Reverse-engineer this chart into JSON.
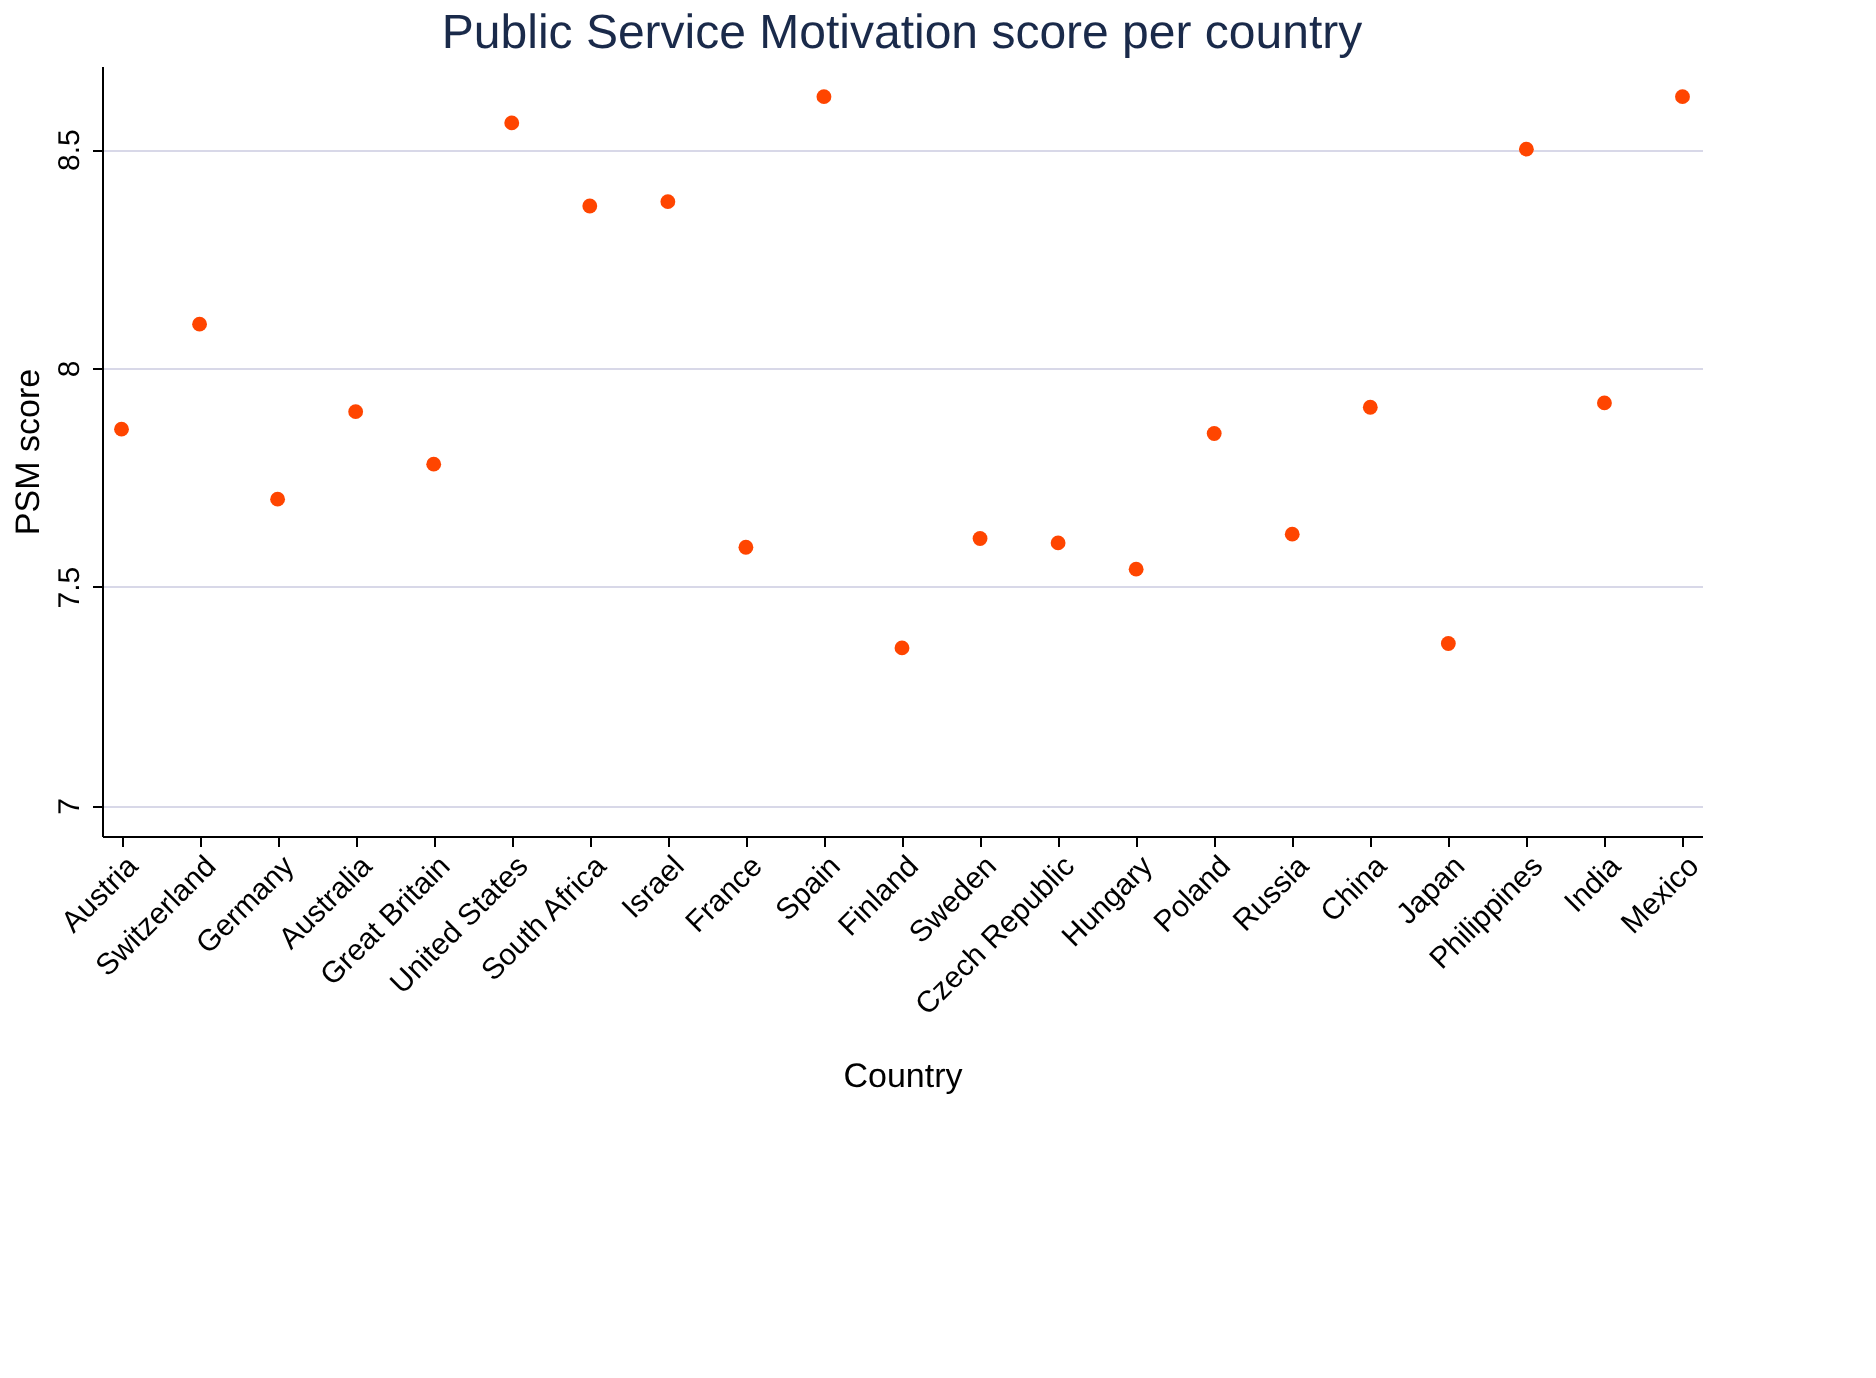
{
  "chart_data": {
    "type": "scatter",
    "title": "Public Service Motivation score per country",
    "xlabel": "Country",
    "ylabel": "PSM score",
    "categories": [
      "Austria",
      "Switzerland",
      "Germany",
      "Australia",
      "Great Britain",
      "United States",
      "South Africa",
      "Israel",
      "France",
      "Spain",
      "Finland",
      "Sweden",
      "Czech Republic",
      "Hungary",
      "Poland",
      "Russia",
      "China",
      "Japan",
      "Philippines",
      "India",
      "Mexico"
    ],
    "series": [
      {
        "color": "#ff4500",
        "values": [
          7.86,
          8.1,
          7.7,
          7.9,
          7.78,
          8.56,
          8.37,
          8.38,
          7.59,
          8.62,
          7.36,
          7.61,
          7.6,
          7.54,
          7.85,
          7.62,
          7.91,
          7.37,
          8.5,
          7.92,
          8.62
        ]
      }
    ],
    "ylim": [
      6.93,
      8.69
    ],
    "yticks": [
      7,
      7.5,
      8,
      8.5
    ],
    "grid": "y",
    "marker": "circle"
  }
}
